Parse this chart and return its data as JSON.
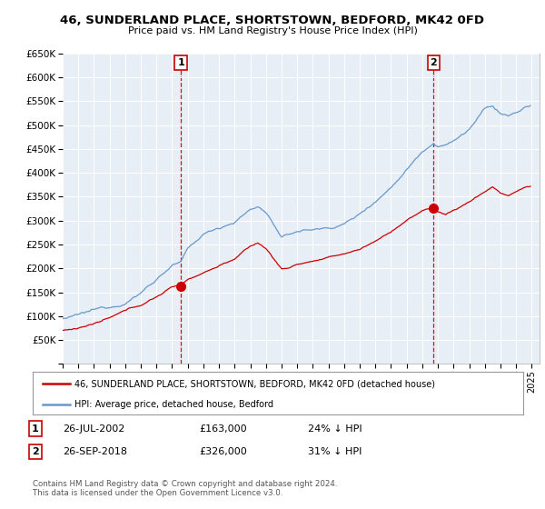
{
  "title": "46, SUNDERLAND PLACE, SHORTSTOWN, BEDFORD, MK42 0FD",
  "subtitle": "Price paid vs. HM Land Registry's House Price Index (HPI)",
  "legend_line1": "46, SUNDERLAND PLACE, SHORTSTOWN, BEDFORD, MK42 0FD (detached house)",
  "legend_line2": "HPI: Average price, detached house, Bedford",
  "annotation1_label": "1",
  "annotation1_date": "26-JUL-2002",
  "annotation1_price": "£163,000",
  "annotation1_hpi": "24% ↓ HPI",
  "annotation2_label": "2",
  "annotation2_date": "26-SEP-2018",
  "annotation2_price": "£326,000",
  "annotation2_hpi": "31% ↓ HPI",
  "footer": "Contains HM Land Registry data © Crown copyright and database right 2024.\nThis data is licensed under the Open Government Licence v3.0.",
  "ylim": [
    0,
    650000
  ],
  "yticks": [
    0,
    50000,
    100000,
    150000,
    200000,
    250000,
    300000,
    350000,
    400000,
    450000,
    500000,
    550000,
    600000,
    650000
  ],
  "xlim_start": 1995.0,
  "xlim_end": 2025.5,
  "red_color": "#cc0000",
  "blue_color": "#6699cc",
  "chart_bg": "#e8eef5",
  "background_color": "#ffffff",
  "grid_color": "#ffffff",
  "sale1_x": 2002.56,
  "sale1_y": 163000,
  "sale2_x": 2018.73,
  "sale2_y": 326000,
  "vline1_x": 2002.56,
  "vline2_x": 2018.73
}
